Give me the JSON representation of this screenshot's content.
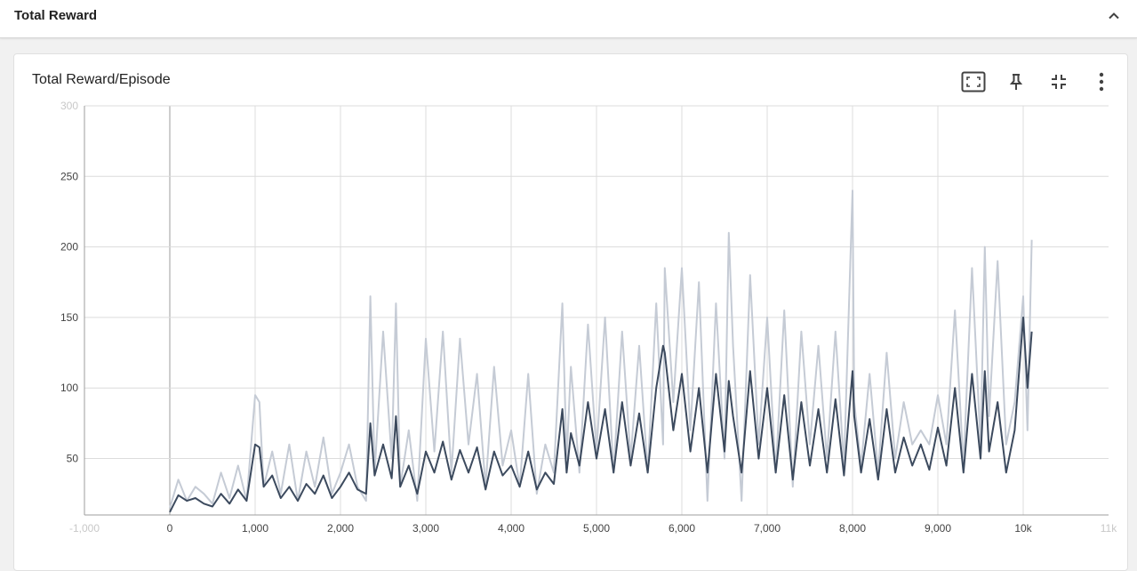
{
  "section": {
    "title": "Total Reward"
  },
  "card": {
    "title": "Total Reward/Episode"
  },
  "icons": {
    "collapse": "chevron-up-icon",
    "fit": "fit-to-domain-icon",
    "pin": "pin-icon",
    "shrink": "fullscreen-exit-icon",
    "more": "more-vert-icon"
  },
  "colors": {
    "smoothed": "#3c4a5e",
    "raw": "#c5cbd5",
    "grid": "#dcdcdc",
    "axis": "#9e9e9e"
  },
  "chart_data": {
    "type": "line",
    "title": "Total Reward/Episode",
    "xlabel": "",
    "ylabel": "",
    "xlim": [
      -1000,
      11000
    ],
    "ylim": [
      10,
      300
    ],
    "x_ticks": [
      {
        "v": -1000,
        "label": "-1,000",
        "faded": true
      },
      {
        "v": 0,
        "label": "0"
      },
      {
        "v": 1000,
        "label": "1,000"
      },
      {
        "v": 2000,
        "label": "2,000"
      },
      {
        "v": 3000,
        "label": "3,000"
      },
      {
        "v": 4000,
        "label": "4,000"
      },
      {
        "v": 5000,
        "label": "5,000"
      },
      {
        "v": 6000,
        "label": "6,000"
      },
      {
        "v": 7000,
        "label": "7,000"
      },
      {
        "v": 8000,
        "label": "8,000"
      },
      {
        "v": 9000,
        "label": "9,000"
      },
      {
        "v": 10000,
        "label": "10k"
      },
      {
        "v": 11000,
        "label": "11k",
        "faded": true
      }
    ],
    "y_ticks": [
      {
        "v": 50,
        "label": "50"
      },
      {
        "v": 100,
        "label": "100"
      },
      {
        "v": 150,
        "label": "150"
      },
      {
        "v": 200,
        "label": "200"
      },
      {
        "v": 250,
        "label": "250"
      },
      {
        "v": 300,
        "label": "300",
        "faded": true
      }
    ],
    "grid": true,
    "series": [
      {
        "role": "raw",
        "x": [
          0,
          100,
          200,
          300,
          400,
          500,
          600,
          700,
          800,
          900,
          1000,
          1050,
          1100,
          1200,
          1300,
          1400,
          1500,
          1600,
          1700,
          1800,
          1900,
          2000,
          2100,
          2200,
          2300,
          2350,
          2400,
          2500,
          2600,
          2650,
          2700,
          2800,
          2900,
          3000,
          3100,
          3200,
          3300,
          3400,
          3500,
          3600,
          3700,
          3800,
          3900,
          4000,
          4100,
          4200,
          4300,
          4400,
          4500,
          4600,
          4650,
          4700,
          4800,
          4900,
          5000,
          5100,
          5200,
          5300,
          5400,
          5500,
          5600,
          5700,
          5780,
          5800,
          5900,
          6000,
          6100,
          6200,
          6300,
          6400,
          6500,
          6550,
          6600,
          6700,
          6800,
          6900,
          7000,
          7100,
          7200,
          7300,
          7400,
          7500,
          7600,
          7700,
          7800,
          7900,
          8000,
          8020,
          8100,
          8200,
          8300,
          8400,
          8500,
          8600,
          8700,
          8800,
          8900,
          9000,
          9100,
          9200,
          9300,
          9400,
          9500,
          9550,
          9600,
          9700,
          9800,
          9900,
          10000,
          10050,
          10100
        ],
        "y": [
          15,
          35,
          20,
          30,
          25,
          18,
          40,
          22,
          45,
          20,
          95,
          90,
          30,
          55,
          25,
          60,
          20,
          55,
          30,
          65,
          25,
          40,
          60,
          30,
          20,
          165,
          40,
          140,
          50,
          160,
          30,
          70,
          20,
          135,
          55,
          140,
          40,
          135,
          60,
          110,
          30,
          115,
          45,
          70,
          30,
          110,
          25,
          60,
          40,
          160,
          50,
          115,
          40,
          145,
          55,
          150,
          40,
          140,
          50,
          130,
          40,
          160,
          60,
          185,
          90,
          185,
          70,
          175,
          20,
          160,
          50,
          210,
          130,
          20,
          180,
          60,
          150,
          40,
          155,
          30,
          140,
          60,
          130,
          50,
          140,
          45,
          240,
          90,
          45,
          110,
          40,
          125,
          50,
          90,
          60,
          70,
          60,
          95,
          60,
          155,
          45,
          185,
          60,
          200,
          80,
          190,
          60,
          90,
          165,
          70,
          205
        ]
      },
      {
        "role": "smoothed",
        "x": [
          0,
          100,
          200,
          300,
          400,
          500,
          600,
          700,
          800,
          900,
          1000,
          1050,
          1100,
          1200,
          1300,
          1400,
          1500,
          1600,
          1700,
          1800,
          1900,
          2000,
          2100,
          2200,
          2300,
          2350,
          2400,
          2500,
          2600,
          2650,
          2700,
          2800,
          2900,
          3000,
          3100,
          3200,
          3300,
          3400,
          3500,
          3600,
          3700,
          3800,
          3900,
          4000,
          4100,
          4200,
          4300,
          4400,
          4500,
          4600,
          4650,
          4700,
          4800,
          4900,
          5000,
          5100,
          5200,
          5300,
          5400,
          5500,
          5600,
          5700,
          5780,
          5800,
          5900,
          6000,
          6100,
          6200,
          6300,
          6400,
          6500,
          6550,
          6600,
          6700,
          6800,
          6900,
          7000,
          7100,
          7200,
          7300,
          7400,
          7500,
          7600,
          7700,
          7800,
          7900,
          8000,
          8020,
          8100,
          8200,
          8300,
          8400,
          8500,
          8600,
          8700,
          8800,
          8900,
          9000,
          9100,
          9200,
          9300,
          9400,
          9500,
          9550,
          9600,
          9700,
          9800,
          9900,
          10000,
          10050,
          10100
        ],
        "y": [
          12,
          24,
          20,
          22,
          18,
          16,
          25,
          18,
          28,
          20,
          60,
          58,
          30,
          38,
          22,
          30,
          20,
          32,
          25,
          38,
          22,
          30,
          40,
          28,
          25,
          75,
          38,
          60,
          36,
          80,
          30,
          45,
          25,
          55,
          40,
          62,
          35,
          56,
          40,
          58,
          28,
          55,
          38,
          45,
          30,
          55,
          28,
          40,
          32,
          85,
          40,
          68,
          45,
          90,
          50,
          85,
          40,
          90,
          45,
          82,
          40,
          100,
          130,
          125,
          70,
          110,
          55,
          100,
          40,
          110,
          55,
          105,
          80,
          40,
          112,
          50,
          100,
          40,
          95,
          35,
          90,
          45,
          85,
          40,
          92,
          38,
          112,
          80,
          40,
          78,
          35,
          85,
          40,
          65,
          45,
          60,
          42,
          72,
          45,
          100,
          40,
          110,
          50,
          112,
          55,
          90,
          40,
          70,
          150,
          100,
          140
        ]
      }
    ]
  }
}
